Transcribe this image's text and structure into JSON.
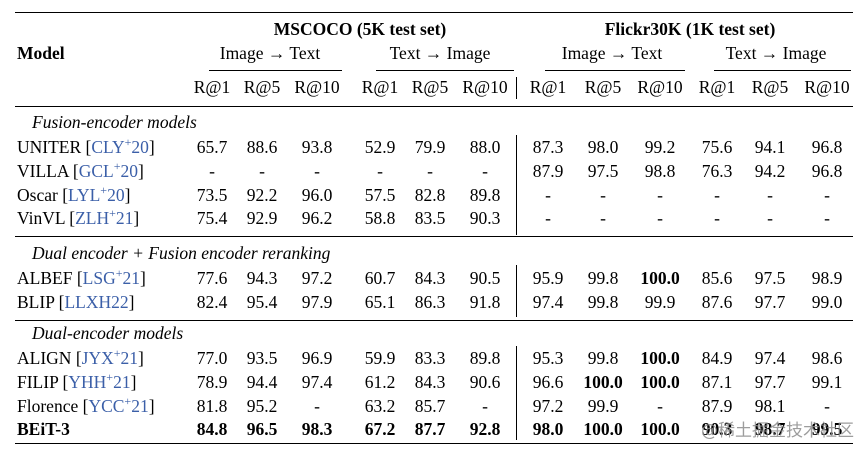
{
  "header": {
    "model_label": "Model",
    "groups": [
      {
        "title": "MSCOCO (5K test set)",
        "sub": [
          "Image → Text",
          "Text → Image"
        ]
      },
      {
        "title": "Flickr30K (1K test set)",
        "sub": [
          "Image → Text",
          "Text → Image"
        ]
      }
    ],
    "metrics": [
      "R@1",
      "R@5",
      "R@10",
      "R@1",
      "R@5",
      "R@10",
      "R@1",
      "R@5",
      "R@10",
      "R@1",
      "R@5",
      "R@10"
    ]
  },
  "sections": [
    {
      "title": "Fusion-encoder models",
      "rows": [
        {
          "name": "UNITER",
          "ref": "CLY",
          "ref_sup": "+",
          "ref_year": "20",
          "vals": [
            "65.7",
            "88.6",
            "93.8",
            "52.9",
            "79.9",
            "88.0",
            "87.3",
            "98.0",
            "99.2",
            "75.6",
            "94.1",
            "96.8"
          ],
          "bold": []
        },
        {
          "name": "VILLA",
          "ref": "GCL",
          "ref_sup": "+",
          "ref_year": "20",
          "vals": [
            "-",
            "-",
            "-",
            "-",
            "-",
            "-",
            "87.9",
            "97.5",
            "98.8",
            "76.3",
            "94.2",
            "96.8"
          ],
          "bold": []
        },
        {
          "name": "Oscar",
          "ref": "LYL",
          "ref_sup": "+",
          "ref_year": "20",
          "vals": [
            "73.5",
            "92.2",
            "96.0",
            "57.5",
            "82.8",
            "89.8",
            "-",
            "-",
            "-",
            "-",
            "-",
            "-"
          ],
          "bold": []
        },
        {
          "name": "VinVL",
          "ref": "ZLH",
          "ref_sup": "+",
          "ref_year": "21",
          "vals": [
            "75.4",
            "92.9",
            "96.2",
            "58.8",
            "83.5",
            "90.3",
            "-",
            "-",
            "-",
            "-",
            "-",
            "-"
          ],
          "bold": []
        }
      ]
    },
    {
      "title": "Dual encoder + Fusion encoder reranking",
      "rows": [
        {
          "name": "ALBEF",
          "ref": "LSG",
          "ref_sup": "+",
          "ref_year": "21",
          "vals": [
            "77.6",
            "94.3",
            "97.2",
            "60.7",
            "84.3",
            "90.5",
            "95.9",
            "99.8",
            "100.0",
            "85.6",
            "97.5",
            "98.9"
          ],
          "bold": [
            8
          ]
        },
        {
          "name": "BLIP",
          "ref": "LLXH22",
          "ref_sup": "",
          "ref_year": "",
          "vals": [
            "82.4",
            "95.4",
            "97.9",
            "65.1",
            "86.3",
            "91.8",
            "97.4",
            "99.8",
            "99.9",
            "87.6",
            "97.7",
            "99.0"
          ],
          "bold": []
        }
      ]
    },
    {
      "title": "Dual-encoder models",
      "rows": [
        {
          "name": "ALIGN",
          "ref": "JYX",
          "ref_sup": "+",
          "ref_year": "21",
          "vals": [
            "77.0",
            "93.5",
            "96.9",
            "59.9",
            "83.3",
            "89.8",
            "95.3",
            "99.8",
            "100.0",
            "84.9",
            "97.4",
            "98.6"
          ],
          "bold": [
            8
          ]
        },
        {
          "name": "FILIP",
          "ref": "YHH",
          "ref_sup": "+",
          "ref_year": "21",
          "vals": [
            "78.9",
            "94.4",
            "97.4",
            "61.2",
            "84.3",
            "90.6",
            "96.6",
            "100.0",
            "100.0",
            "87.1",
            "97.7",
            "99.1"
          ],
          "bold": [
            7,
            8
          ]
        },
        {
          "name": "Florence",
          "ref": "YCC",
          "ref_sup": "+",
          "ref_year": "21",
          "vals": [
            "81.8",
            "95.2",
            "-",
            "63.2",
            "85.7",
            "-",
            "97.2",
            "99.9",
            "-",
            "87.9",
            "98.1",
            "-"
          ],
          "bold": []
        },
        {
          "name": "BEiT-3",
          "ref": "",
          "ref_sup": "",
          "ref_year": "",
          "vals": [
            "84.8",
            "96.5",
            "98.3",
            "67.2",
            "87.7",
            "92.8",
            "98.0",
            "100.0",
            "100.0",
            "90.3",
            "98.7",
            "99.5"
          ],
          "bold": [
            0,
            1,
            2,
            3,
            4,
            5,
            6,
            7,
            8,
            9,
            10,
            11
          ],
          "name_bold": true
        }
      ]
    }
  ],
  "watermark": "@稀土掘金技术社区"
}
